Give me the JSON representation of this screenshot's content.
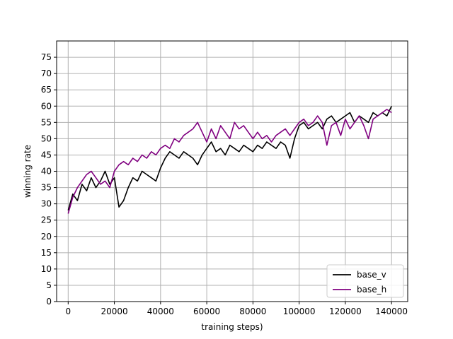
{
  "chart_data": {
    "type": "line",
    "title": "",
    "xlabel": "training steps)",
    "ylabel": "winning rate",
    "xlim": [
      -5000,
      147000
    ],
    "ylim": [
      0,
      80
    ],
    "xticks": [
      0,
      20000,
      40000,
      60000,
      80000,
      100000,
      120000,
      140000
    ],
    "yticks": [
      0,
      5,
      10,
      15,
      20,
      25,
      30,
      35,
      40,
      45,
      50,
      55,
      60,
      65,
      70,
      75
    ],
    "grid": true,
    "legend_position": "bottom-right",
    "series": [
      {
        "name": "base_v",
        "color": "#000000",
        "x": [
          0,
          2000,
          4000,
          6000,
          8000,
          10000,
          12000,
          14000,
          16000,
          18000,
          20000,
          22000,
          24000,
          26000,
          28000,
          30000,
          32000,
          34000,
          36000,
          38000,
          40000,
          42000,
          44000,
          46000,
          48000,
          50000,
          52000,
          54000,
          56000,
          58000,
          60000,
          62000,
          64000,
          66000,
          68000,
          70000,
          72000,
          74000,
          76000,
          78000,
          80000,
          82000,
          84000,
          86000,
          88000,
          90000,
          92000,
          94000,
          96000,
          98000,
          100000,
          102000,
          104000,
          106000,
          108000,
          110000,
          112000,
          114000,
          116000,
          118000,
          120000,
          122000,
          124000,
          126000,
          128000,
          130000,
          132000,
          134000,
          136000,
          138000,
          140000
        ],
        "values": [
          28,
          33,
          31,
          36,
          34,
          38,
          35,
          37,
          40,
          36,
          38,
          29,
          31,
          35,
          38,
          37,
          40,
          39,
          38,
          37,
          41,
          44,
          46,
          45,
          44,
          46,
          45,
          44,
          42,
          45,
          47,
          49,
          46,
          47,
          45,
          48,
          47,
          46,
          48,
          47,
          46,
          48,
          47,
          49,
          48,
          47,
          49,
          48,
          44,
          50,
          54,
          55,
          53,
          54,
          55,
          53,
          56,
          57,
          55,
          56,
          57,
          58,
          55,
          57,
          56,
          55,
          58,
          57,
          58,
          57,
          60
        ]
      },
      {
        "name": "base_h",
        "color": "#800080",
        "x": [
          0,
          2000,
          4000,
          6000,
          8000,
          10000,
          12000,
          14000,
          16000,
          18000,
          20000,
          22000,
          24000,
          26000,
          28000,
          30000,
          32000,
          34000,
          36000,
          38000,
          40000,
          42000,
          44000,
          46000,
          48000,
          50000,
          52000,
          54000,
          56000,
          58000,
          60000,
          62000,
          64000,
          66000,
          68000,
          70000,
          72000,
          74000,
          76000,
          78000,
          80000,
          82000,
          84000,
          86000,
          88000,
          90000,
          92000,
          94000,
          96000,
          98000,
          100000,
          102000,
          104000,
          106000,
          108000,
          110000,
          112000,
          114000,
          116000,
          118000,
          120000,
          122000,
          124000,
          126000,
          128000,
          130000,
          132000,
          134000,
          136000,
          138000,
          140000
        ],
        "values": [
          27,
          32,
          35,
          37,
          39,
          40,
          38,
          36,
          37,
          35,
          40,
          42,
          43,
          42,
          44,
          43,
          45,
          44,
          46,
          45,
          47,
          48,
          47,
          50,
          49,
          51,
          52,
          53,
          55,
          52,
          49,
          53,
          50,
          54,
          52,
          50,
          55,
          53,
          54,
          52,
          50,
          52,
          50,
          51,
          49,
          51,
          52,
          53,
          51,
          53,
          55,
          56,
          54,
          55,
          57,
          55,
          48,
          54,
          55,
          51,
          56,
          53,
          55,
          57,
          54,
          50,
          56,
          57,
          58,
          59,
          58
        ]
      }
    ]
  }
}
